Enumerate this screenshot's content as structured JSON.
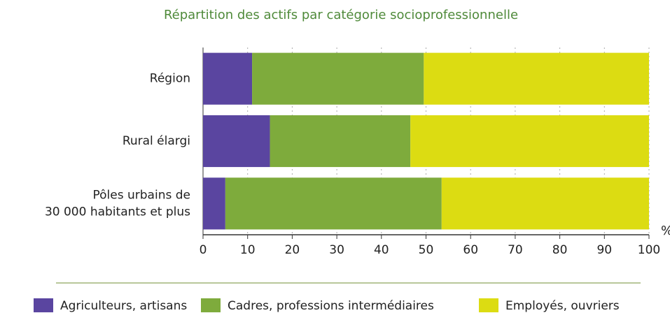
{
  "chart_data": {
    "type": "stacked_bar_horizontal",
    "title": "Répartition des actifs par catégorie socioprofessionnelle",
    "categories": [
      "Région",
      "Rural élargi",
      "Pôles urbains de\n30 000 habitants et plus"
    ],
    "series": [
      {
        "name": "Agriculteurs, artisans",
        "color": "#5a45a0",
        "values": [
          11,
          15,
          5
        ]
      },
      {
        "name": "Cadres, professions intermédiaires",
        "color": "#7eab3c",
        "values": [
          38.5,
          31.5,
          48.5
        ]
      },
      {
        "name": "Employés, ouvriers",
        "color": "#dcdc12",
        "values": [
          50.5,
          53.5,
          46.5
        ]
      }
    ],
    "x_unit": "%",
    "xlim": [
      0,
      100
    ],
    "xticks": [
      0,
      10,
      20,
      30,
      40,
      50,
      60,
      70,
      80,
      90,
      100
    ],
    "grid": true
  }
}
